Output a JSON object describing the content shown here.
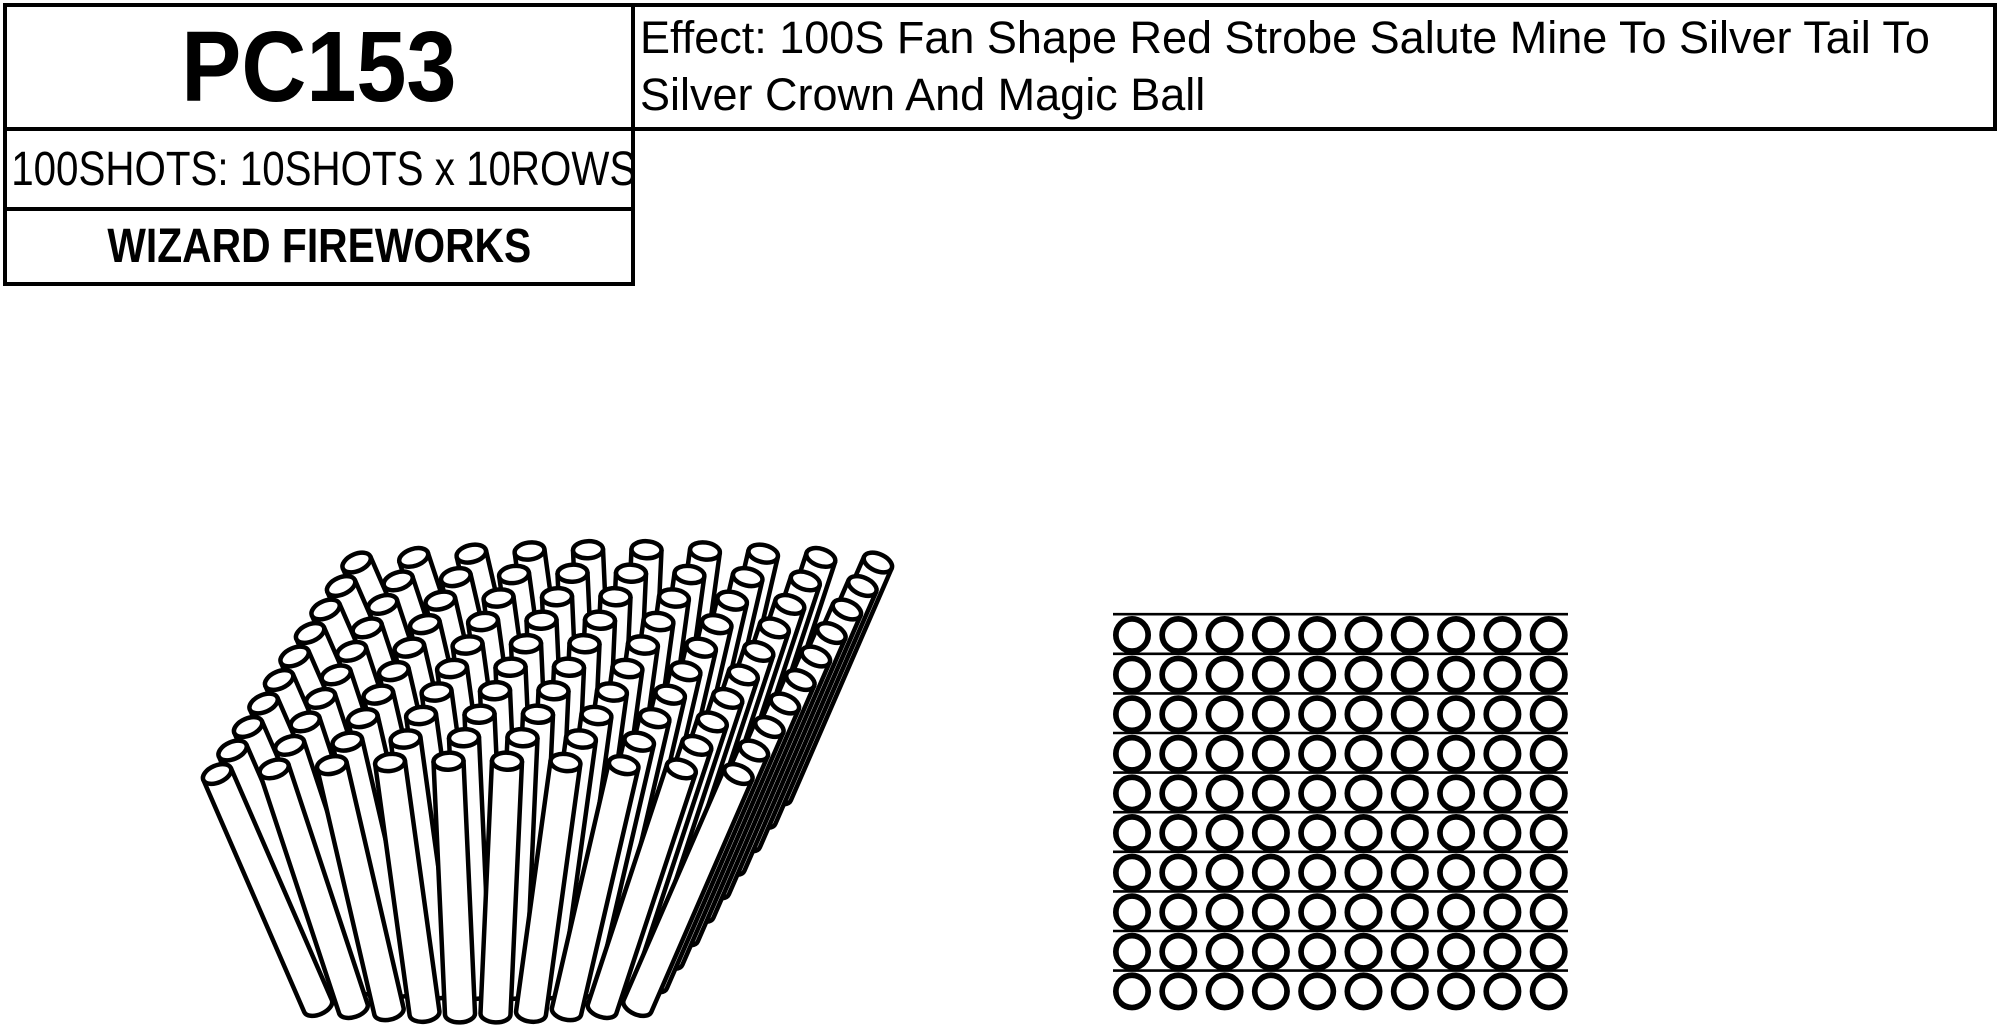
{
  "page": {
    "background": "#ffffff",
    "ink": "#000000"
  },
  "header": {
    "product_code": "PC153",
    "effect": "Effect: 100S Fan Shape Red Strobe Salute Mine To Silver Tail To Silver Crown And Magic Ball",
    "shots": "100SHOTS: 10SHOTS x 10ROWS",
    "brand": "WIZARD FIREWORKS"
  },
  "figures": {
    "fan": {
      "rows": 10,
      "cols": 10,
      "spread_degrees": 47
    },
    "grid": {
      "rows": 10,
      "cols": 10
    }
  }
}
